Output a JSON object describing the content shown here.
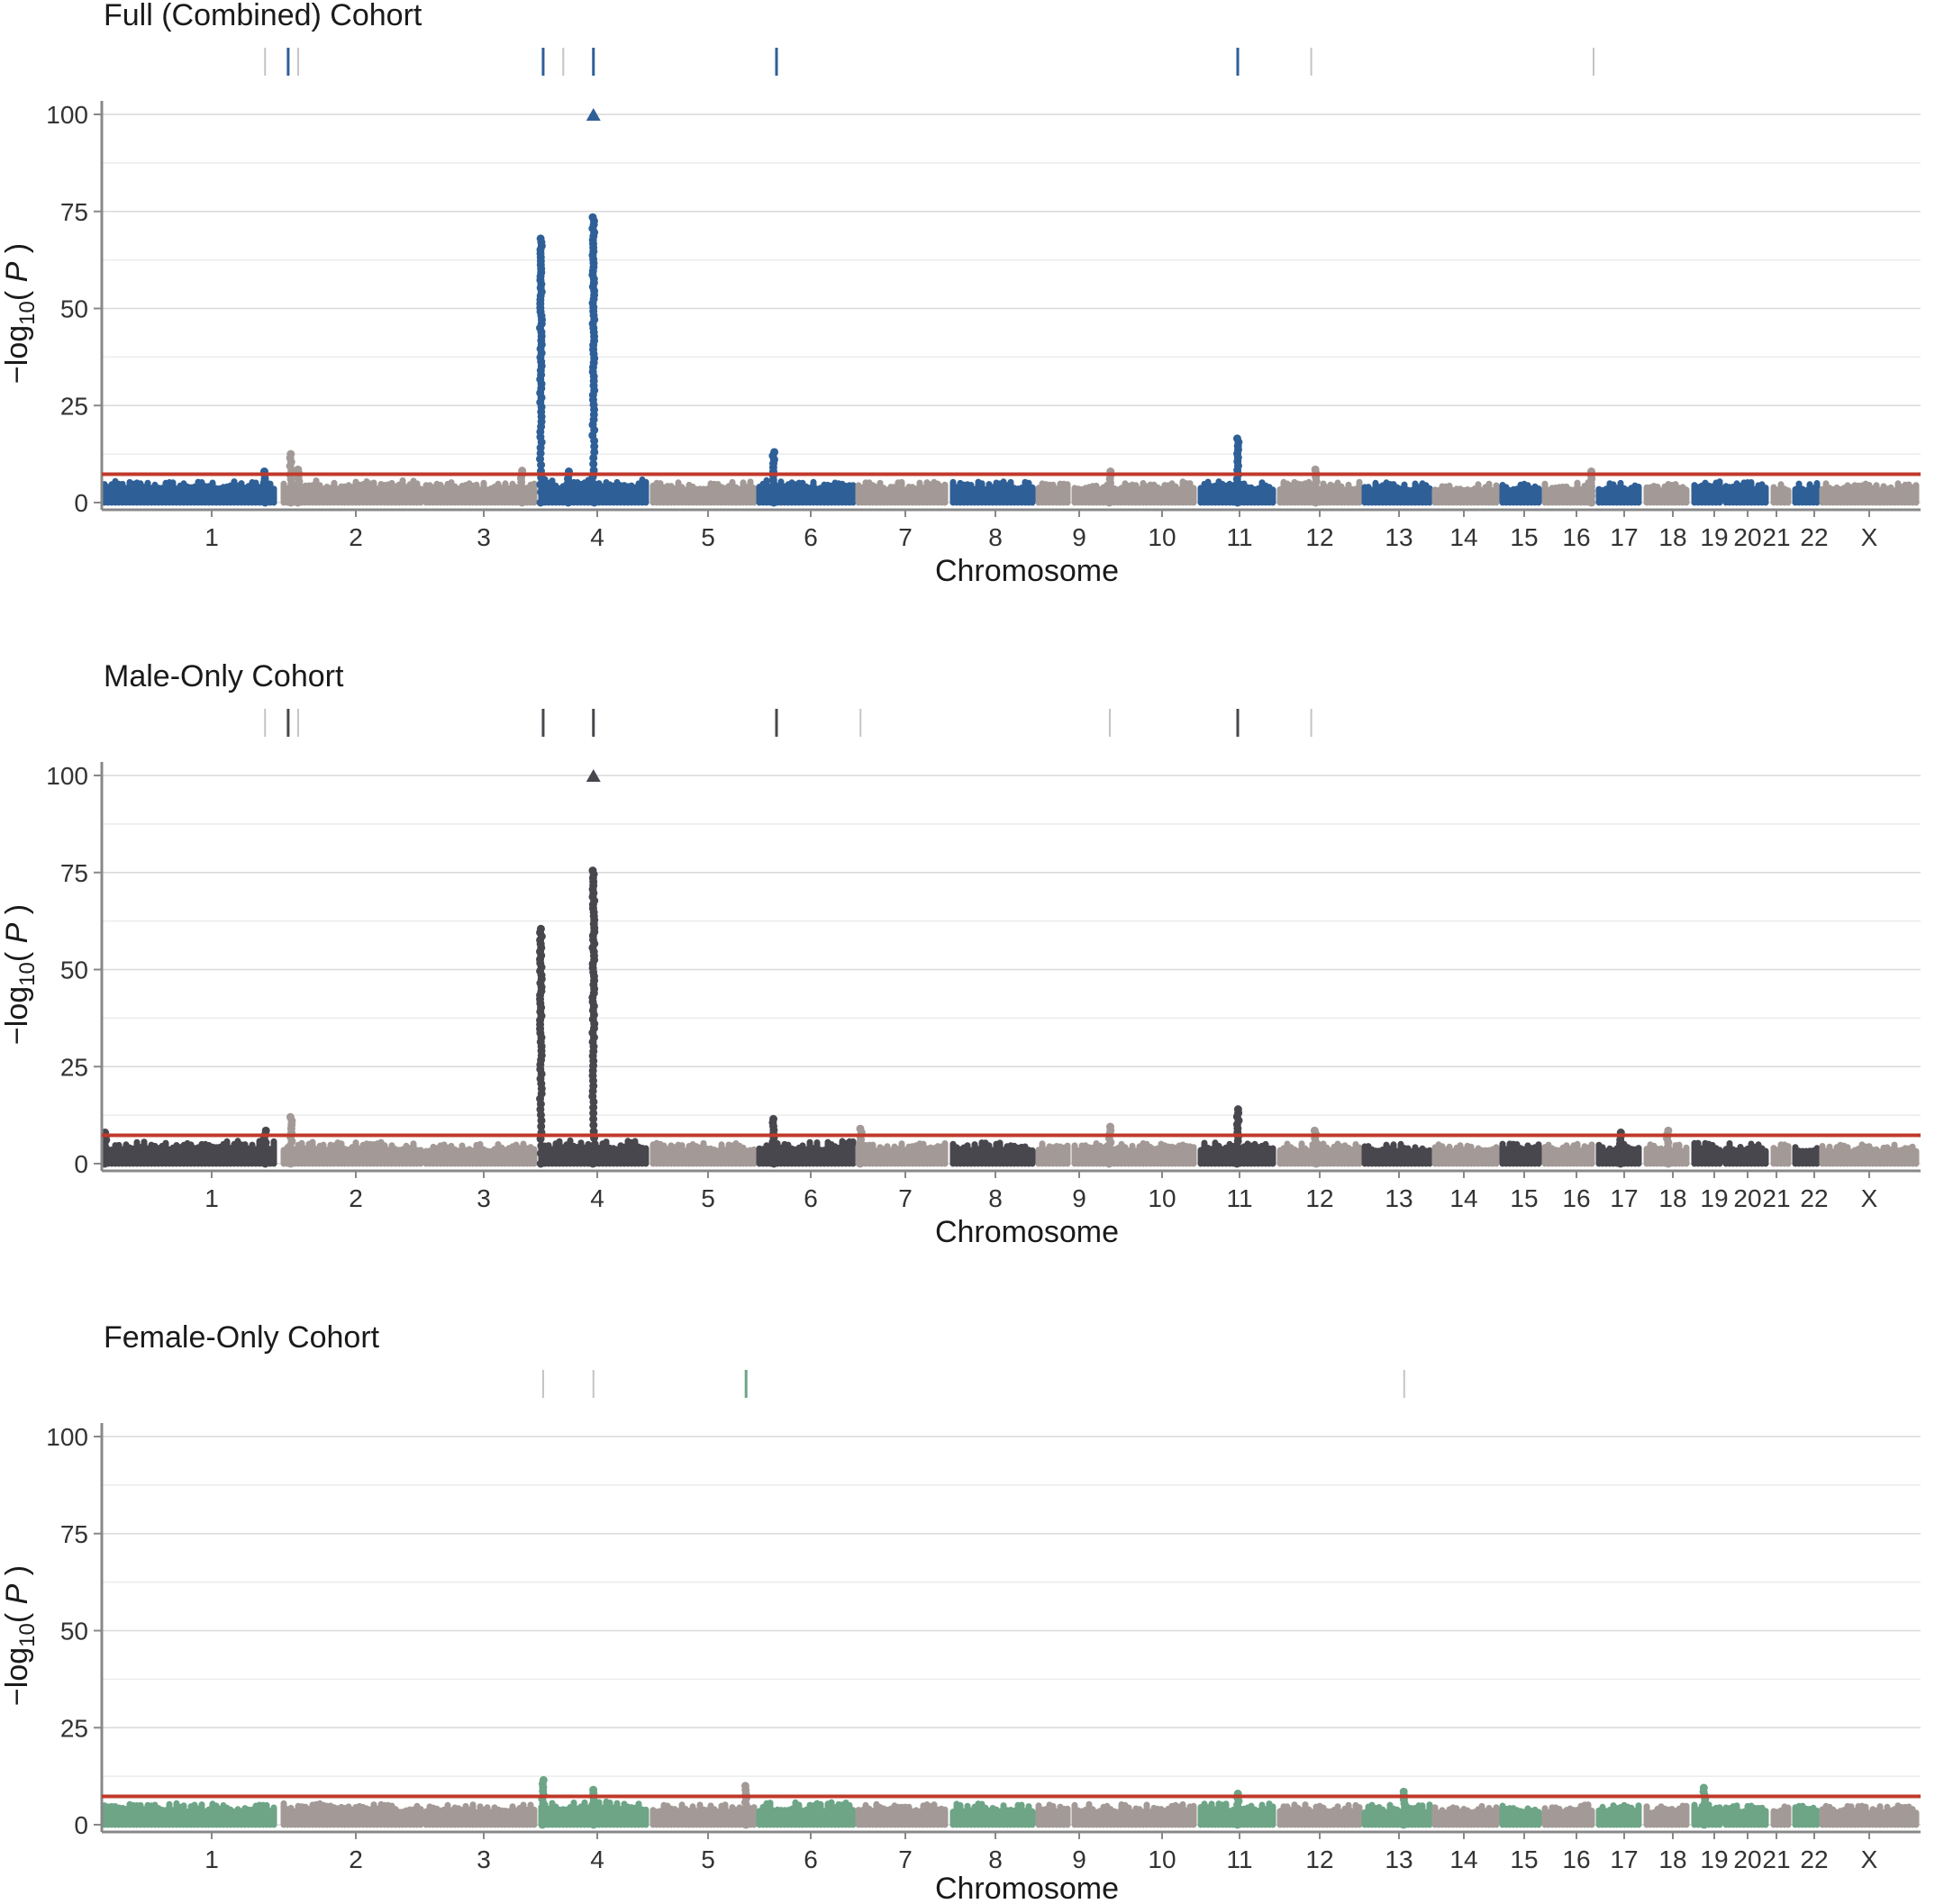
{
  "figure": {
    "ylabel": "−log10(P)",
    "xlabel": "Chromosome"
  },
  "chart_data": [
    {
      "type": "scatter",
      "title": "Full (Combined) Cohort",
      "xlabel": "Chromosome",
      "ylabel": "−log10(P)",
      "ylim": [
        0,
        100
      ],
      "yticks": [
        0,
        25,
        50,
        75,
        100
      ],
      "threshold": 7.3,
      "categories": [
        "1",
        "2",
        "3",
        "4",
        "5",
        "6",
        "7",
        "8",
        "9",
        "10",
        "11",
        "12",
        "13",
        "14",
        "15",
        "16",
        "17",
        "18",
        "19",
        "20",
        "21",
        "22",
        "X"
      ],
      "colors": {
        "primary": "#2f5f97",
        "alt": "#a39a97",
        "threshold": "#c0392b"
      },
      "background_max": [
        5.5,
        5.8,
        5.2,
        6.0,
        5.4,
        5.8,
        5.3,
        5.5,
        5.2,
        5.4,
        5.5,
        5.3,
        5.2,
        5.0,
        5.2,
        5.3,
        5.1,
        5.0,
        5.5,
        5.3,
        5.0,
        5.2,
        5.0
      ],
      "peaks": [
        {
          "chrom": "1",
          "pos": 0.92,
          "value": 8.0
        },
        {
          "chrom": "2",
          "pos": 0.07,
          "value": 12.5
        },
        {
          "chrom": "2",
          "pos": 0.12,
          "value": 8.5
        },
        {
          "chrom": "3",
          "pos": 0.85,
          "value": 8.2
        },
        {
          "chrom": "4",
          "pos": 0.02,
          "value": 68
        },
        {
          "chrom": "4",
          "pos": 0.27,
          "value": 8.0
        },
        {
          "chrom": "4",
          "pos": 0.49,
          "value": 73.5
        },
        {
          "chrom": "6",
          "pos": 0.17,
          "value": 13.0
        },
        {
          "chrom": "10",
          "pos": 0.3,
          "value": 8.0
        },
        {
          "chrom": "11",
          "pos": 0.5,
          "value": 16.5
        },
        {
          "chrom": "12",
          "pos": 0.45,
          "value": 8.5
        },
        {
          "chrom": "16",
          "pos": 0.9,
          "value": 8.0
        }
      ],
      "capped_point": {
        "chrom": "4",
        "pos": 0.49,
        "value": 100,
        "marker": "triangle"
      },
      "locus_marks": [
        {
          "chrom": "1",
          "pos": 0.92,
          "strong": false
        },
        {
          "chrom": "2",
          "pos": 0.05,
          "strong": true
        },
        {
          "chrom": "2",
          "pos": 0.12,
          "strong": false
        },
        {
          "chrom": "4",
          "pos": 0.04,
          "strong": true
        },
        {
          "chrom": "4",
          "pos": 0.22,
          "strong": false
        },
        {
          "chrom": "4",
          "pos": 0.49,
          "strong": true
        },
        {
          "chrom": "6",
          "pos": 0.2,
          "strong": true
        },
        {
          "chrom": "11",
          "pos": 0.5,
          "strong": true
        },
        {
          "chrom": "12",
          "pos": 0.4,
          "strong": false
        },
        {
          "chrom": "16",
          "pos": 0.95,
          "strong": false
        }
      ]
    },
    {
      "type": "scatter",
      "title": "Male-Only Cohort",
      "xlabel": "Chromosome",
      "ylabel": "−log10(P)",
      "ylim": [
        0,
        100
      ],
      "yticks": [
        0,
        25,
        50,
        75,
        100
      ],
      "threshold": 7.3,
      "categories": [
        "1",
        "2",
        "3",
        "4",
        "5",
        "6",
        "7",
        "8",
        "9",
        "10",
        "11",
        "12",
        "13",
        "14",
        "15",
        "16",
        "17",
        "18",
        "19",
        "20",
        "21",
        "22",
        "X"
      ],
      "colors": {
        "primary": "#48474d",
        "alt": "#a39a97",
        "threshold": "#c0392b"
      },
      "background_max": [
        6.0,
        5.8,
        5.2,
        6.0,
        5.4,
        5.8,
        5.3,
        5.5,
        5.2,
        5.4,
        5.5,
        5.3,
        5.2,
        5.0,
        5.2,
        5.3,
        5.1,
        5.0,
        5.5,
        5.3,
        5.0,
        5.2,
        5.0
      ],
      "peaks": [
        {
          "chrom": "1",
          "pos": 0.02,
          "value": 8.0
        },
        {
          "chrom": "1",
          "pos": 0.92,
          "value": 8.5
        },
        {
          "chrom": "2",
          "pos": 0.07,
          "value": 12.0
        },
        {
          "chrom": "4",
          "pos": 0.02,
          "value": 60.5
        },
        {
          "chrom": "4",
          "pos": 0.49,
          "value": 75.5
        },
        {
          "chrom": "6",
          "pos": 0.17,
          "value": 11.5
        },
        {
          "chrom": "7",
          "pos": 0.05,
          "value": 9.0
        },
        {
          "chrom": "10",
          "pos": 0.3,
          "value": 9.5
        },
        {
          "chrom": "11",
          "pos": 0.5,
          "value": 14.0
        },
        {
          "chrom": "12",
          "pos": 0.45,
          "value": 8.5
        },
        {
          "chrom": "17",
          "pos": 0.5,
          "value": 8.0
        },
        {
          "chrom": "18",
          "pos": 0.5,
          "value": 8.5
        }
      ],
      "capped_point": {
        "chrom": "4",
        "pos": 0.49,
        "value": 100,
        "marker": "triangle"
      },
      "locus_marks": [
        {
          "chrom": "1",
          "pos": 0.92,
          "strong": false
        },
        {
          "chrom": "2",
          "pos": 0.05,
          "strong": true
        },
        {
          "chrom": "2",
          "pos": 0.12,
          "strong": false
        },
        {
          "chrom": "4",
          "pos": 0.04,
          "strong": true
        },
        {
          "chrom": "4",
          "pos": 0.49,
          "strong": true
        },
        {
          "chrom": "6",
          "pos": 0.2,
          "strong": true
        },
        {
          "chrom": "7",
          "pos": 0.05,
          "strong": false
        },
        {
          "chrom": "10",
          "pos": 0.3,
          "strong": false
        },
        {
          "chrom": "11",
          "pos": 0.5,
          "strong": true
        },
        {
          "chrom": "12",
          "pos": 0.4,
          "strong": false
        }
      ]
    },
    {
      "type": "scatter",
      "title": "Female-Only Cohort",
      "xlabel": "Chromosome",
      "ylabel": "−log10(P)",
      "ylim": [
        0,
        100
      ],
      "yticks": [
        0,
        25,
        50,
        75,
        100
      ],
      "threshold": 7.3,
      "categories": [
        "1",
        "2",
        "3",
        "4",
        "5",
        "6",
        "7",
        "8",
        "9",
        "10",
        "11",
        "12",
        "13",
        "14",
        "15",
        "16",
        "17",
        "18",
        "19",
        "20",
        "21",
        "22",
        "X"
      ],
      "colors": {
        "primary": "#6da586",
        "alt": "#a39a97",
        "threshold": "#c0392b"
      },
      "background_max": [
        5.5,
        5.5,
        5.2,
        6.0,
        5.4,
        5.8,
        5.3,
        5.5,
        5.2,
        5.4,
        5.5,
        5.3,
        5.2,
        5.0,
        5.2,
        5.3,
        5.1,
        5.0,
        5.5,
        5.3,
        5.0,
        5.2,
        5.0
      ],
      "peaks": [
        {
          "chrom": "4",
          "pos": 0.04,
          "value": 11.5
        },
        {
          "chrom": "4",
          "pos": 0.49,
          "value": 9.0
        },
        {
          "chrom": "5",
          "pos": 0.9,
          "value": 10.0
        },
        {
          "chrom": "11",
          "pos": 0.5,
          "value": 8.0
        },
        {
          "chrom": "13",
          "pos": 0.6,
          "value": 8.5
        },
        {
          "chrom": "19",
          "pos": 0.4,
          "value": 9.5
        }
      ],
      "capped_point": null,
      "locus_marks": [
        {
          "chrom": "4",
          "pos": 0.04,
          "strong": false
        },
        {
          "chrom": "4",
          "pos": 0.49,
          "strong": false
        },
        {
          "chrom": "5",
          "pos": 0.9,
          "strong": true
        },
        {
          "chrom": "13",
          "pos": 0.6,
          "strong": false
        }
      ]
    }
  ]
}
